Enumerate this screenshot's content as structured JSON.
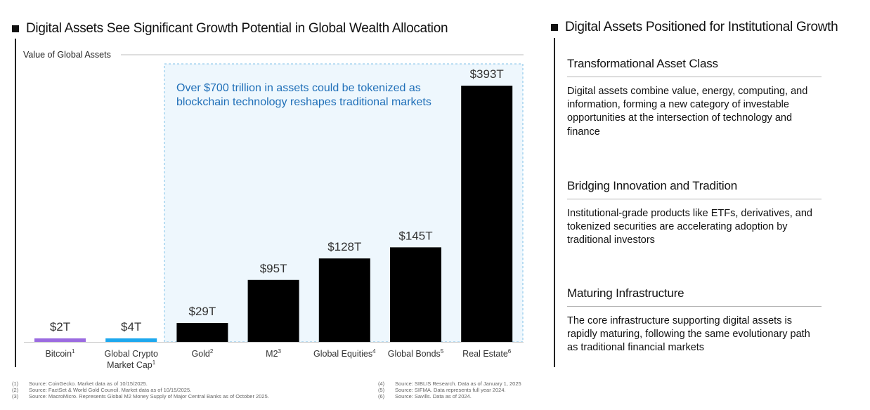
{
  "left_heading": "Digital Assets See Significant Growth Potential in Global Wealth Allocation",
  "right_heading": "Digital Assets Positioned for Institutional Growth",
  "callout_text": "Over $700 trillion in assets could be tokenized as blockchain technology reshapes traditional markets",
  "colors": {
    "bitcoin": "#9b6be0",
    "crypto": "#1ea8ee",
    "default_bar": "#000000",
    "callout_text": "#1f6fb8",
    "callout_bg": "#eef7fd"
  },
  "chart_data": {
    "type": "bar",
    "ylabel": "Value of Global Assets",
    "unit": "trillion USD",
    "ylim": [
      0,
      393
    ],
    "grid": false,
    "bars": [
      {
        "category": "Bitcoin",
        "sup": "1",
        "value": 2,
        "label": "$2T",
        "color": "#9b6be0"
      },
      {
        "category": "Global Crypto\nMarket Cap",
        "sup": "1",
        "value": 4,
        "label": "$4T",
        "color": "#1ea8ee"
      },
      {
        "category": "Gold",
        "sup": "2",
        "value": 29,
        "label": "$29T",
        "color": "#000000"
      },
      {
        "category": "M2",
        "sup": "3",
        "value": 95,
        "label": "$95T",
        "color": "#000000"
      },
      {
        "category": "Global Equities",
        "sup": "4",
        "value": 128,
        "label": "$128T",
        "color": "#000000"
      },
      {
        "category": "Global Bonds",
        "sup": "5",
        "value": 145,
        "label": "$145T",
        "color": "#000000"
      },
      {
        "category": "Real Estate",
        "sup": "6",
        "value": 393,
        "label": "$393T",
        "color": "#000000"
      }
    ]
  },
  "sections": [
    {
      "title": "Transformational Asset Class",
      "body": "Digital assets combine value, energy, computing, and information, forming a new category of investable opportunities at the intersection of technology and finance"
    },
    {
      "title": "Bridging Innovation and Tradition",
      "body": "Institutional-grade products like ETFs, derivatives, and tokenized securities are accelerating adoption by traditional investors"
    },
    {
      "title": "Maturing Infrastructure",
      "body": "The core infrastructure supporting digital assets is rapidly maturing, following the same evolutionary path as traditional financial markets"
    }
  ],
  "footnotes_left": [
    {
      "num": "(1)",
      "text": "Source: CoinGecko. Market data as of 10/15/2025."
    },
    {
      "num": "(2)",
      "text": "Source: FactSet & World Gold Council. Market data as of 10/15/2025."
    },
    {
      "num": "(3)",
      "text": "Source: MacroMicro. Represents Global M2 Money Supply of Major Central Banks as of October 2025."
    }
  ],
  "footnotes_right": [
    {
      "num": "(4)",
      "text": "Source: SIBLIS Research. Data as of January 1, 2025"
    },
    {
      "num": "(5)",
      "text": "Source: SIFMA. Data represents full year 2024."
    },
    {
      "num": "(6)",
      "text": "Source: Savills. Data as of 2024."
    }
  ]
}
